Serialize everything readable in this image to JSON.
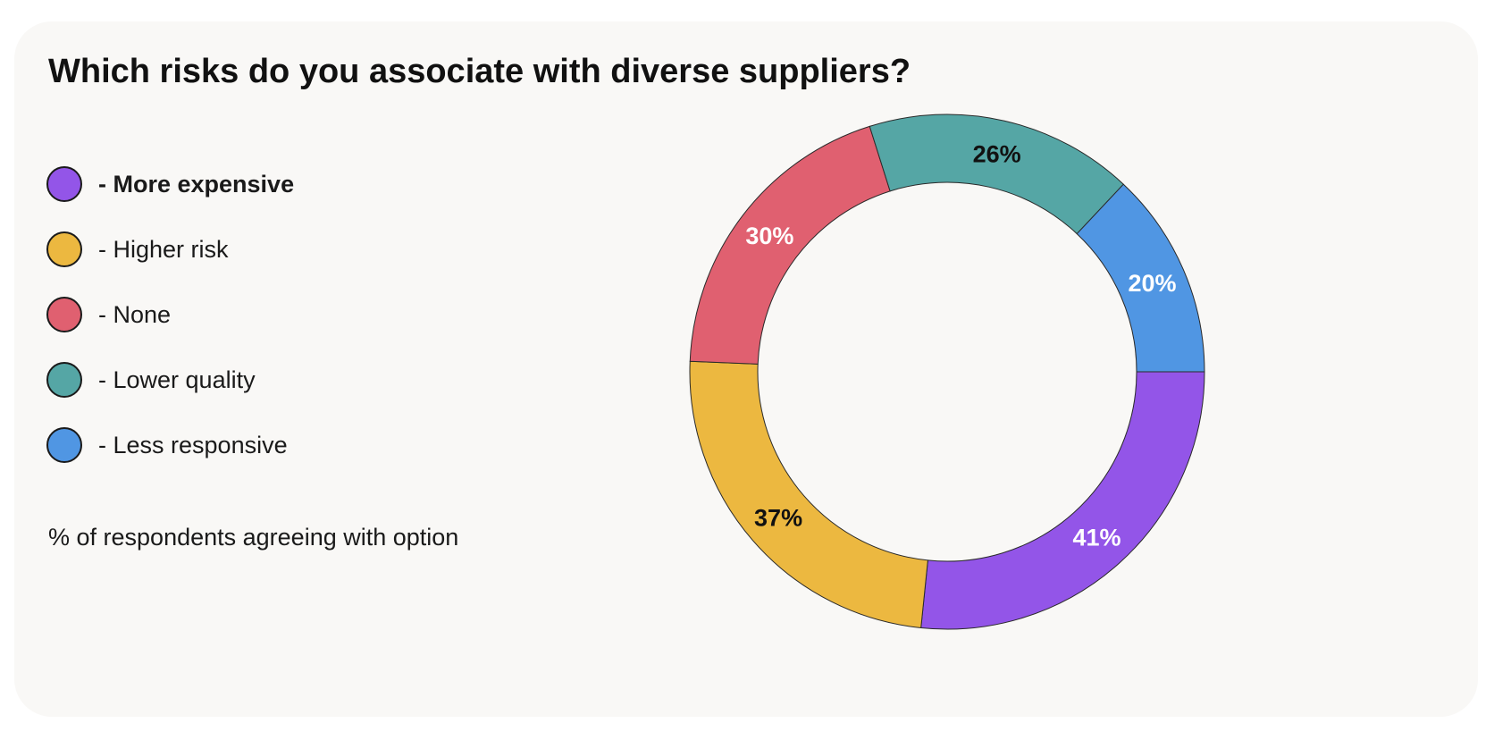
{
  "chart_data": {
    "type": "pie",
    "style": "donut",
    "title": "Which risks do you associate with diverse suppliers?",
    "note": "% of respondents agreeing with option",
    "legend_position": "left",
    "slices": [
      {
        "label": "- More expensive",
        "value": 41,
        "display": "41%",
        "color": "#9355e8",
        "label_color": "#ffffff"
      },
      {
        "label": "- Higher risk",
        "value": 37,
        "display": "37%",
        "color": "#ecb840",
        "label_color": "#111111"
      },
      {
        "label": "- None",
        "value": 30,
        "display": "30%",
        "color": "#e06070",
        "label_color": "#ffffff"
      },
      {
        "label": "- Lower quality",
        "value": 26,
        "display": "26%",
        "color": "#55a6a5",
        "label_color": "#111111"
      },
      {
        "label": "- Less responsive",
        "value": 20,
        "display": "20%",
        "color": "#5096e3",
        "label_color": "#ffffff"
      }
    ]
  }
}
